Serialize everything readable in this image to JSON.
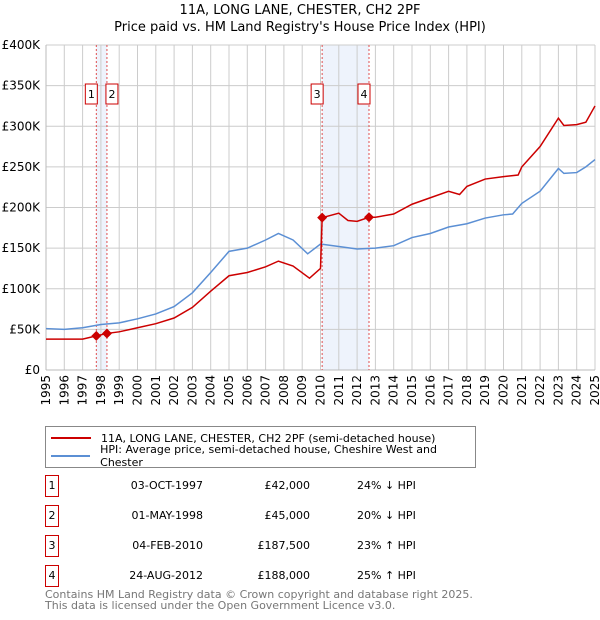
{
  "title": "11A, LONG LANE, CHESTER, CH2 2PF",
  "subtitle": "Price paid vs. HM Land Registry's House Price Index (HPI)",
  "chart_data": {
    "type": "line",
    "title": "11A, LONG LANE, CHESTER, CH2 2PF",
    "subtitle": "Price paid vs. HM Land Registry's House Price Index (HPI)",
    "xlim": [
      1995,
      2025
    ],
    "ylim": [
      0,
      400000
    ],
    "x_ticks": [
      "1995",
      "1996",
      "1997",
      "1998",
      "1999",
      "2000",
      "2001",
      "2002",
      "2003",
      "2004",
      "2005",
      "2006",
      "2007",
      "2008",
      "2009",
      "2010",
      "2011",
      "2012",
      "2013",
      "2014",
      "2015",
      "2016",
      "2017",
      "2018",
      "2019",
      "2020",
      "2021",
      "2022",
      "2023",
      "2024",
      "2025"
    ],
    "y_ticks": [
      {
        "v": 0,
        "label": "£0"
      },
      {
        "v": 50000,
        "label": "£50K"
      },
      {
        "v": 100000,
        "label": "£100K"
      },
      {
        "v": 150000,
        "label": "£150K"
      },
      {
        "v": 200000,
        "label": "£200K"
      },
      {
        "v": 250000,
        "label": "£250K"
      },
      {
        "v": 300000,
        "label": "£300K"
      },
      {
        "v": 350000,
        "label": "£350K"
      },
      {
        "v": 400000,
        "label": "£400K"
      }
    ],
    "grid": true,
    "legend_position": "bottom",
    "series": [
      {
        "name": "11A, LONG LANE, CHESTER, CH2 2PF (semi-detached house)",
        "color": "#cc0000",
        "x": [
          1995,
          1996,
          1997,
          1997.75,
          1998.33,
          1999,
          2000,
          2001,
          2002,
          2003,
          2004,
          2005,
          2006,
          2007,
          2007.7,
          2008.5,
          2009.4,
          2010.0,
          2010.09,
          2011,
          2011.5,
          2012,
          2012.65,
          2013,
          2014,
          2015,
          2016,
          2017,
          2017.6,
          2018,
          2019,
          2020,
          2020.8,
          2021,
          2022,
          2023,
          2023.3,
          2024,
          2024.5,
          2025
        ],
        "y": [
          38000,
          38000,
          38000,
          42000,
          45000,
          47000,
          52000,
          57000,
          64000,
          77000,
          97000,
          116000,
          120000,
          127000,
          134000,
          128000,
          113000,
          125000,
          187500,
          193000,
          184000,
          183000,
          188000,
          188000,
          192000,
          204000,
          212000,
          220000,
          216000,
          226000,
          235000,
          238000,
          240000,
          250000,
          275000,
          310000,
          301000,
          302000,
          305000,
          325000
        ]
      },
      {
        "name": "HPI: Average price, semi-detached house, Cheshire West and Chester",
        "color": "#5b8fd4",
        "x": [
          1995,
          1996,
          1997,
          1998,
          1999,
          2000,
          2001,
          2002,
          2003,
          2004,
          2005,
          2006,
          2007,
          2007.7,
          2008.5,
          2009.3,
          2010,
          2011,
          2012,
          2013,
          2014,
          2015,
          2016,
          2017,
          2018,
          2019,
          2020,
          2020.5,
          2021,
          2022,
          2023,
          2023.3,
          2024,
          2024.5,
          2025
        ],
        "y": [
          51000,
          50000,
          52000,
          56000,
          58000,
          63000,
          69000,
          78000,
          95000,
          120000,
          146000,
          150000,
          160000,
          168000,
          160000,
          143000,
          155000,
          152000,
          149000,
          150000,
          153000,
          163000,
          168000,
          176000,
          180000,
          187000,
          191000,
          192000,
          205000,
          220000,
          248000,
          242000,
          243000,
          250000,
          259000
        ]
      }
    ],
    "shaded_ranges": [
      [
        1997.75,
        1998.33
      ],
      [
        2010.09,
        2012.65
      ]
    ],
    "markers": [
      {
        "label": "1",
        "x": 1997.75,
        "y": 42000
      },
      {
        "label": "2",
        "x": 1998.33,
        "y": 45000
      },
      {
        "label": "3",
        "x": 2010.09,
        "y": 187500
      },
      {
        "label": "4",
        "x": 2012.65,
        "y": 188000
      }
    ]
  },
  "legend": {
    "property": "11A, LONG LANE, CHESTER, CH2 2PF (semi-detached house)",
    "hpi": "HPI: Average price, semi-detached house, Cheshire West and Chester"
  },
  "transactions": [
    {
      "num": "1",
      "date": "03-OCT-1997",
      "price": "£42,000",
      "hpi": "24% ↓ HPI"
    },
    {
      "num": "2",
      "date": "01-MAY-1998",
      "price": "£45,000",
      "hpi": "20% ↓ HPI"
    },
    {
      "num": "3",
      "date": "04-FEB-2010",
      "price": "£187,500",
      "hpi": "23% ↑ HPI"
    },
    {
      "num": "4",
      "date": "24-AUG-2012",
      "price": "£188,000",
      "hpi": "25% ↑ HPI"
    }
  ],
  "footer": {
    "line1": "Contains HM Land Registry data © Crown copyright and database right 2025.",
    "line2": "This data is licensed under the Open Government Licence v3.0."
  }
}
